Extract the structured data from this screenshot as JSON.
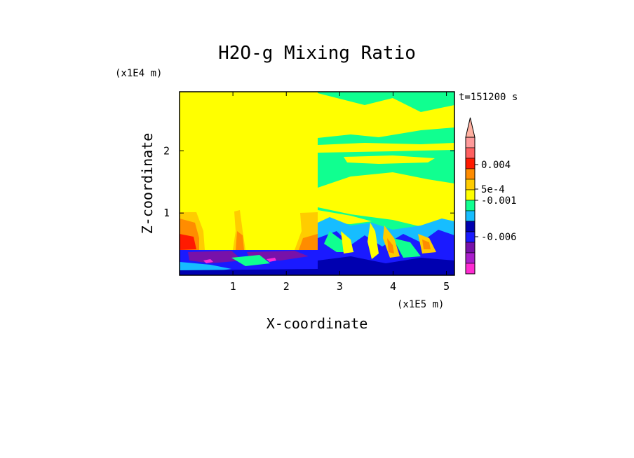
{
  "chart_data": {
    "type": "heatmap",
    "title": "H2O-g Mixing Ratio",
    "xlabel": "X-coordinate",
    "ylabel": "Z-coordinate",
    "x_unit": "(x1E5 m)",
    "y_unit": "(x1E4 m)",
    "time_label": "t=151200 s",
    "xlim": [
      0,
      5.15
    ],
    "ylim": [
      0,
      2.95
    ],
    "x_ticks": [
      "1",
      "2",
      "3",
      "4",
      "5"
    ],
    "y_ticks": [
      "1",
      "2"
    ],
    "colorbar": {
      "colors": [
        "#ff2bd2",
        "#aa1ecc",
        "#7711aa",
        "#1a1aff",
        "#0000b0",
        "#16bdff",
        "#10ff90",
        "#ffff00",
        "#ffcc00",
        "#ff8c00",
        "#ff1a00",
        "#ff6060",
        "#ff9a9a"
      ],
      "labels": [
        "0.004",
        "5e-4",
        "-0.001",
        "-0.006"
      ],
      "extend_top": true
    },
    "regions": [
      {
        "name": "upper-left-background",
        "value_color": "#ffff00"
      },
      {
        "name": "upper-right-layered",
        "value_color": "#10ff90"
      },
      {
        "name": "lower-boundary-layer",
        "value_color": "#0000b0"
      }
    ]
  }
}
